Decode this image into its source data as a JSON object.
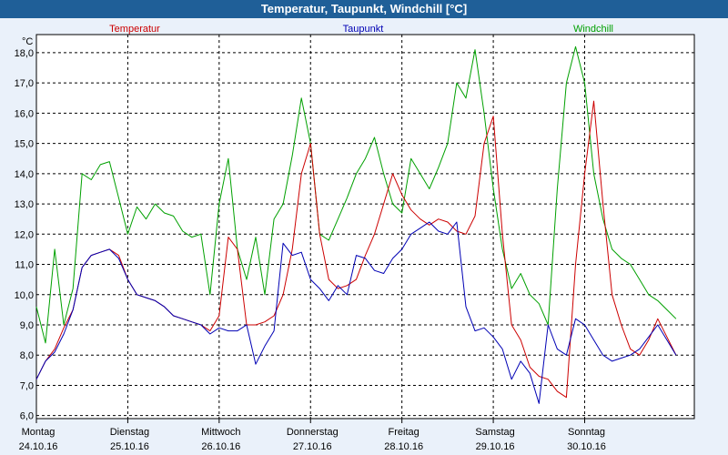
{
  "chart_data": {
    "type": "line",
    "title": "Temperatur, Taupunkt, Windchill [°C]",
    "ylabel": "°C",
    "ylim": [
      5.9,
      18.6
    ],
    "yticks": [
      6.0,
      7.0,
      8.0,
      9.0,
      10.0,
      11.0,
      12.0,
      13.0,
      14.0,
      15.0,
      16.0,
      17.0,
      18.0
    ],
    "ytick_labels": [
      "6,0",
      "7,0",
      "8,0",
      "9,0",
      "10,0",
      "11,0",
      "12,0",
      "13,0",
      "14,0",
      "15,0",
      "16,0",
      "17,0",
      "18,0"
    ],
    "xlim": [
      0,
      7.2
    ],
    "x_days": [
      {
        "day": "Montag",
        "date": "24.10.16"
      },
      {
        "day": "Dienstag",
        "date": "25.10.16"
      },
      {
        "day": "Mittwoch",
        "date": "26.10.16"
      },
      {
        "day": "Donnerstag",
        "date": "27.10.16"
      },
      {
        "day": "Freitag",
        "date": "28.10.16"
      },
      {
        "day": "Samstag",
        "date": "29.10.16"
      },
      {
        "day": "Sonntag",
        "date": "30.10.16"
      }
    ],
    "grid": true,
    "series": [
      {
        "name": "Temperatur",
        "color": "#cc0000",
        "x": [
          0,
          0.1,
          0.2,
          0.3,
          0.4,
          0.5,
          0.6,
          0.7,
          0.8,
          0.9,
          1.0,
          1.1,
          1.2,
          1.3,
          1.4,
          1.5,
          1.6,
          1.7,
          1.8,
          1.9,
          2.0,
          2.1,
          2.2,
          2.3,
          2.4,
          2.5,
          2.6,
          2.7,
          2.8,
          2.9,
          3.0,
          3.1,
          3.2,
          3.3,
          3.4,
          3.5,
          3.6,
          3.7,
          3.8,
          3.9,
          4.0,
          4.1,
          4.2,
          4.3,
          4.4,
          4.5,
          4.6,
          4.7,
          4.8,
          4.9,
          5.0,
          5.1,
          5.2,
          5.3,
          5.4,
          5.5,
          5.6,
          5.7,
          5.8,
          5.9,
          6.0,
          6.1,
          6.2,
          6.3,
          6.4,
          6.5,
          6.6,
          6.7,
          6.8,
          6.9,
          7.0
        ],
        "values": [
          7.2,
          7.8,
          8.2,
          8.9,
          9.5,
          10.9,
          11.3,
          11.4,
          11.5,
          11.3,
          10.5,
          10.0,
          9.9,
          9.8,
          9.6,
          9.3,
          9.2,
          9.1,
          9.0,
          8.8,
          9.3,
          11.9,
          11.5,
          9.0,
          9.0,
          9.1,
          9.3,
          10.0,
          11.5,
          14.0,
          15.0,
          12.0,
          10.5,
          10.2,
          10.3,
          10.5,
          11.3,
          12.0,
          13.0,
          14.0,
          13.3,
          12.8,
          12.5,
          12.3,
          12.5,
          12.4,
          12.1,
          12.0,
          12.6,
          15.0,
          15.9,
          12.0,
          9.0,
          8.5,
          7.6,
          7.3,
          7.2,
          6.8,
          6.6,
          11.0,
          14.0,
          16.4,
          13.0,
          10.0,
          9.0,
          8.2,
          8.0,
          8.5,
          9.2,
          8.6,
          8.0
        ]
      },
      {
        "name": "Taupunkt",
        "color": "#0000b4",
        "x": [
          0,
          0.1,
          0.2,
          0.3,
          0.4,
          0.5,
          0.6,
          0.7,
          0.8,
          0.9,
          1.0,
          1.1,
          1.2,
          1.3,
          1.4,
          1.5,
          1.6,
          1.7,
          1.8,
          1.9,
          2.0,
          2.1,
          2.2,
          2.3,
          2.4,
          2.5,
          2.6,
          2.7,
          2.8,
          2.9,
          3.0,
          3.1,
          3.2,
          3.3,
          3.4,
          3.5,
          3.6,
          3.7,
          3.8,
          3.9,
          4.0,
          4.1,
          4.2,
          4.3,
          4.4,
          4.5,
          4.6,
          4.7,
          4.8,
          4.9,
          5.0,
          5.1,
          5.2,
          5.3,
          5.4,
          5.5,
          5.6,
          5.7,
          5.8,
          5.9,
          6.0,
          6.1,
          6.2,
          6.3,
          6.4,
          6.5,
          6.6,
          6.7,
          6.8,
          6.9,
          7.0
        ],
        "values": [
          7.2,
          7.8,
          8.1,
          8.7,
          9.5,
          10.9,
          11.3,
          11.4,
          11.5,
          11.2,
          10.5,
          10.0,
          9.9,
          9.8,
          9.6,
          9.3,
          9.2,
          9.1,
          9.0,
          8.7,
          8.9,
          8.8,
          8.8,
          9.0,
          7.7,
          8.3,
          8.8,
          11.7,
          11.3,
          11.4,
          10.5,
          10.2,
          9.8,
          10.3,
          10.0,
          11.3,
          11.2,
          10.8,
          10.7,
          11.2,
          11.5,
          12.0,
          12.2,
          12.4,
          12.1,
          12.0,
          12.4,
          9.6,
          8.8,
          8.9,
          8.6,
          8.2,
          7.2,
          7.8,
          7.4,
          6.4,
          9.0,
          8.2,
          8.0,
          9.2,
          9.0,
          8.5,
          8.0,
          7.8,
          7.9,
          8.0,
          8.2,
          8.6,
          9.0,
          8.5,
          8.0
        ]
      },
      {
        "name": "Windchill",
        "color": "#00a000",
        "x": [
          0,
          0.1,
          0.2,
          0.3,
          0.4,
          0.5,
          0.6,
          0.7,
          0.8,
          0.9,
          1.0,
          1.1,
          1.2,
          1.3,
          1.4,
          1.5,
          1.6,
          1.7,
          1.8,
          1.9,
          2.0,
          2.1,
          2.2,
          2.3,
          2.4,
          2.5,
          2.6,
          2.7,
          2.8,
          2.9,
          3.0,
          3.1,
          3.2,
          3.3,
          3.4,
          3.5,
          3.6,
          3.7,
          3.8,
          3.9,
          4.0,
          4.1,
          4.2,
          4.3,
          4.4,
          4.5,
          4.6,
          4.7,
          4.8,
          4.9,
          5.0,
          5.1,
          5.2,
          5.3,
          5.4,
          5.5,
          5.6,
          5.7,
          5.8,
          5.9,
          6.0,
          6.1,
          6.2,
          6.3,
          6.4,
          6.5,
          6.6,
          6.7,
          6.8,
          6.9,
          7.0
        ],
        "values": [
          9.6,
          8.4,
          11.5,
          9.0,
          10.2,
          14.0,
          13.8,
          14.3,
          14.4,
          13.2,
          12.0,
          12.9,
          12.5,
          13.0,
          12.7,
          12.6,
          12.1,
          11.9,
          12.0,
          10.0,
          13.0,
          14.5,
          11.5,
          10.5,
          11.9,
          10.0,
          12.5,
          13.0,
          14.6,
          16.5,
          15.0,
          12.0,
          11.8,
          12.5,
          13.2,
          14.0,
          14.5,
          15.2,
          14.0,
          13.0,
          12.7,
          14.5,
          14.0,
          13.5,
          14.2,
          15.0,
          17.0,
          16.5,
          18.1,
          16.0,
          13.5,
          11.5,
          10.2,
          10.7,
          10.0,
          9.7,
          9.0,
          13.5,
          17.0,
          18.2,
          17.0,
          14.0,
          12.5,
          11.5,
          11.2,
          11.0,
          10.5,
          10.0,
          9.8,
          9.5,
          9.2
        ]
      }
    ]
  }
}
